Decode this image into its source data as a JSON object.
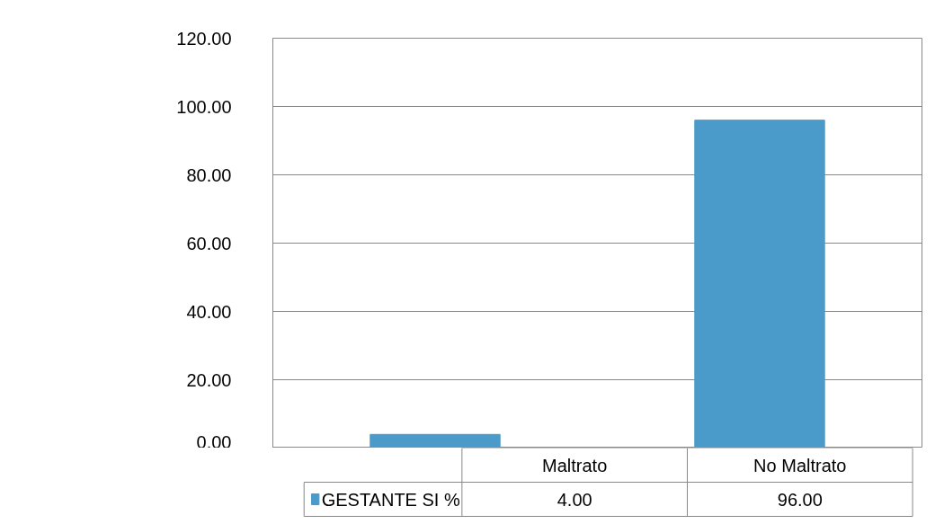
{
  "chart_data": {
    "type": "bar",
    "categories": [
      "Maltrato",
      "No Maltrato"
    ],
    "series": [
      {
        "name": "GESTANTE  SI %",
        "color": "#4a9bc9",
        "values": [
          4,
          96
        ],
        "value_labels": [
          "4.00",
          "96.00"
        ]
      }
    ],
    "ylim": [
      0,
      120
    ],
    "yticks": [
      {
        "value": 0,
        "label": "0.00"
      },
      {
        "value": 20,
        "label": "20.00"
      },
      {
        "value": 40,
        "label": "40.00"
      },
      {
        "value": 60,
        "label": "60.00"
      },
      {
        "value": 80,
        "label": "80.00"
      },
      {
        "value": 100,
        "label": "100.00"
      },
      {
        "value": 120,
        "label": "120.00"
      }
    ],
    "grid": "y",
    "legend": "bottom"
  }
}
